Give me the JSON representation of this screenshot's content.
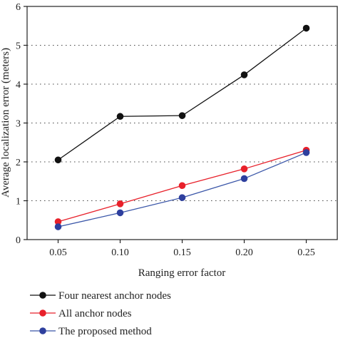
{
  "chart_data": {
    "type": "line",
    "xlabel": "Ranging error factor",
    "ylabel": "Average localization error (meters)",
    "x": [
      0.05,
      0.1,
      0.15,
      0.2,
      0.25
    ],
    "x_tick_labels": [
      "0.05",
      "0.10",
      "0.15",
      "0.20",
      "0.25"
    ],
    "y_tick_labels": [
      "0",
      "1",
      "2",
      "3",
      "4",
      "5",
      "6"
    ],
    "ylim": [
      0,
      6
    ],
    "xlim": [
      0.025,
      0.275
    ],
    "grid": "horizontal dotted",
    "legend_position": "bottom",
    "series": [
      {
        "name": "Four nearest anchor nodes",
        "color": "#111111",
        "marker_color": "#111111",
        "values": [
          2.05,
          3.17,
          3.19,
          4.24,
          5.44
        ]
      },
      {
        "name": "All anchor nodes",
        "color": "#e8202a",
        "marker_color": "#e8202a",
        "values": [
          0.46,
          0.92,
          1.39,
          1.82,
          2.3
        ]
      },
      {
        "name": "The proposed method",
        "color": "#3a56a8",
        "marker_color": "#2e3f9e",
        "values": [
          0.33,
          0.69,
          1.08,
          1.57,
          2.24
        ]
      }
    ]
  }
}
